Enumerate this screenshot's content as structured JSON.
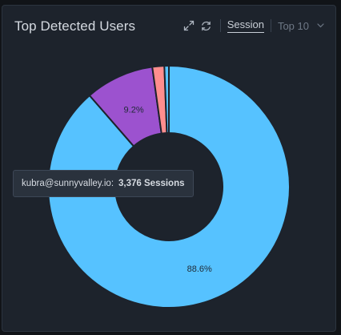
{
  "widget": {
    "title": "Top Detected Users"
  },
  "toolbar": {
    "session_label": "Session",
    "topn_label": "Top 10"
  },
  "tooltip": {
    "user": "kubra@sunnyvalley.io:",
    "value": "3,376 Sessions"
  },
  "chart_data": {
    "type": "pie",
    "donut": true,
    "slices": [
      {
        "value": 88.6,
        "label": "88.6%",
        "color": "#56c2ff"
      },
      {
        "value": 9.2,
        "label": "9.2%",
        "color": "#9c52cf"
      },
      {
        "value": 1.6,
        "label": "",
        "color": "#ff8e8e"
      },
      {
        "value": 0.6,
        "label": "",
        "color": "#56c2ff"
      }
    ]
  }
}
